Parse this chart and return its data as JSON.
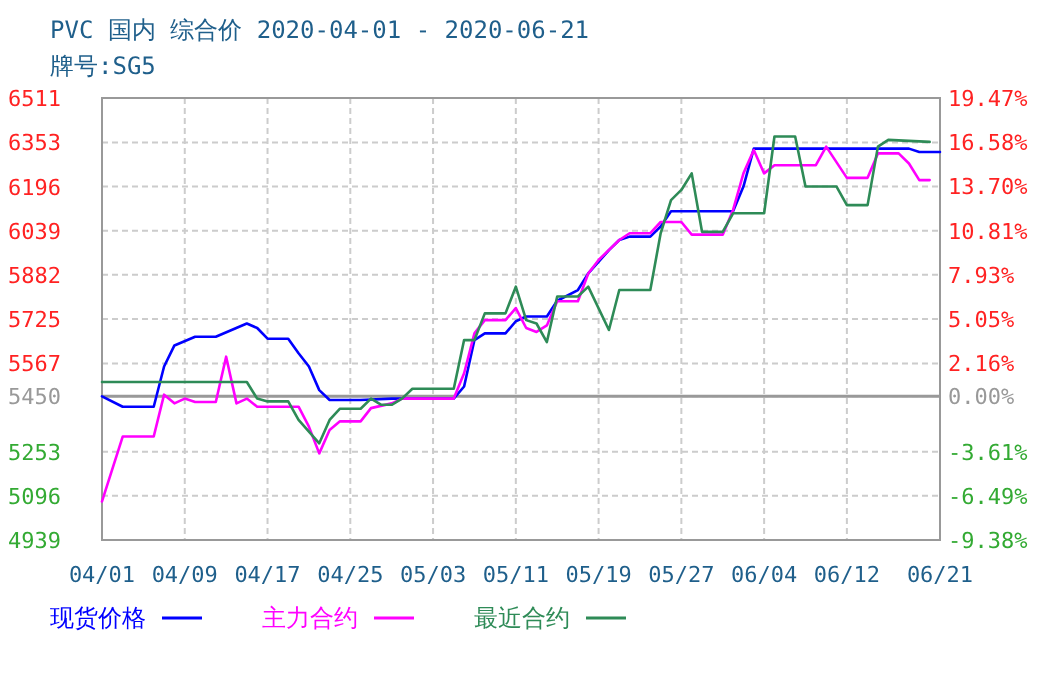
{
  "chart_data": {
    "type": "line",
    "title": "PVC 国内 综合价 2020-04-01 - 2020-06-21",
    "subtitle": "牌号:SG5",
    "xlim": [
      "2020-04-01",
      "2020-06-21"
    ],
    "xticks": [
      {
        "value": "2020-04-01",
        "label": "04/01"
      },
      {
        "value": "2020-04-09",
        "label": "04/09"
      },
      {
        "value": "2020-04-17",
        "label": "04/17"
      },
      {
        "value": "2020-04-25",
        "label": "04/25"
      },
      {
        "value": "2020-05-03",
        "label": "05/03"
      },
      {
        "value": "2020-05-11",
        "label": "05/11"
      },
      {
        "value": "2020-05-19",
        "label": "05/19"
      },
      {
        "value": "2020-05-27",
        "label": "05/27"
      },
      {
        "value": "2020-06-04",
        "label": "06/04"
      },
      {
        "value": "2020-06-12",
        "label": "06/12"
      },
      {
        "value": "2020-06-21",
        "label": "06/21"
      }
    ],
    "ylim": [
      4939,
      6511
    ],
    "yticks": [
      4939,
      5096,
      5253,
      5450,
      5567,
      5725,
      5882,
      6039,
      6196,
      6353,
      6511
    ],
    "y2lim": [
      -9.38,
      19.47
    ],
    "y2ticks": [
      {
        "value": -9.38,
        "label": "-9.38%"
      },
      {
        "value": -6.49,
        "label": "-6.49%"
      },
      {
        "value": -3.61,
        "label": "-3.61%"
      },
      {
        "value": 0,
        "label": "0.00%"
      },
      {
        "value": 2.16,
        "label": "2.16%"
      },
      {
        "value": 5.05,
        "label": "5.05%"
      },
      {
        "value": 7.93,
        "label": "7.93%"
      },
      {
        "value": 10.81,
        "label": "10.81%"
      },
      {
        "value": 13.7,
        "label": "13.70%"
      },
      {
        "value": 16.58,
        "label": "16.58%"
      },
      {
        "value": 19.47,
        "label": "19.47%"
      }
    ],
    "ref_lines": [
      {
        "axis": "y",
        "value": 5450,
        "color": "#999999",
        "line_style": "solid"
      }
    ],
    "grid": true,
    "legend": "bottom",
    "line_style": "solid",
    "series": [
      {
        "name": "现货价格",
        "color": "#0000ff",
        "x": [
          "2020-04-01",
          "2020-04-03",
          "2020-04-06",
          "2020-04-07",
          "2020-04-08",
          "2020-04-10",
          "2020-04-12",
          "2020-04-15",
          "2020-04-16",
          "2020-04-17",
          "2020-04-19",
          "2020-04-20",
          "2020-04-21",
          "2020-04-22",
          "2020-04-23",
          "2020-04-26",
          "2020-04-29",
          "2020-05-05",
          "2020-05-06",
          "2020-05-07",
          "2020-05-08",
          "2020-05-10",
          "2020-05-11",
          "2020-05-12",
          "2020-05-14",
          "2020-05-15",
          "2020-05-17",
          "2020-05-18",
          "2020-05-20",
          "2020-05-21",
          "2020-05-22",
          "2020-05-24",
          "2020-05-25",
          "2020-05-26",
          "2020-06-01",
          "2020-06-02",
          "2020-06-03",
          "2020-06-18",
          "2020-06-19",
          "2020-06-21"
        ],
        "values": [
          5450,
          5413,
          5413,
          5556,
          5631,
          5662,
          5662,
          5709,
          5693,
          5655,
          5655,
          5603,
          5556,
          5472,
          5437,
          5437,
          5442,
          5442,
          5485,
          5650,
          5674,
          5674,
          5717,
          5734,
          5734,
          5790,
          5828,
          5887,
          5970,
          6006,
          6018,
          6018,
          6054,
          6108,
          6108,
          6196,
          6331,
          6331,
          6319,
          6319
        ]
      },
      {
        "name": "主力合约",
        "color": "#ff00ff",
        "x": [
          "2020-04-01",
          "2020-04-03",
          "2020-04-06",
          "2020-04-07",
          "2020-04-08",
          "2020-04-09",
          "2020-04-10",
          "2020-04-12",
          "2020-04-13",
          "2020-04-14",
          "2020-04-15",
          "2020-04-16",
          "2020-04-20",
          "2020-04-21",
          "2020-04-22",
          "2020-04-23",
          "2020-04-24",
          "2020-04-26",
          "2020-04-27",
          "2020-04-29",
          "2020-04-30",
          "2020-05-05",
          "2020-05-06",
          "2020-05-07",
          "2020-05-08",
          "2020-05-10",
          "2020-05-11",
          "2020-05-12",
          "2020-05-13",
          "2020-05-14",
          "2020-05-15",
          "2020-05-17",
          "2020-05-18",
          "2020-05-19",
          "2020-05-21",
          "2020-05-22",
          "2020-05-24",
          "2020-05-25",
          "2020-05-27",
          "2020-05-28",
          "2020-05-31",
          "2020-06-01",
          "2020-06-02",
          "2020-06-03",
          "2020-06-04",
          "2020-06-05",
          "2020-06-09",
          "2020-06-10",
          "2020-06-12",
          "2020-06-14",
          "2020-06-15",
          "2020-06-17",
          "2020-06-18",
          "2020-06-19",
          "2020-06-20"
        ],
        "values": [
          5076,
          5307,
          5307,
          5456,
          5425,
          5442,
          5430,
          5430,
          5591,
          5425,
          5442,
          5413,
          5413,
          5342,
          5247,
          5330,
          5361,
          5361,
          5408,
          5425,
          5442,
          5442,
          5532,
          5674,
          5721,
          5721,
          5764,
          5693,
          5679,
          5702,
          5788,
          5788,
          5887,
          5935,
          6006,
          6030,
          6030,
          6070,
          6070,
          6025,
          6025,
          6113,
          6243,
          6326,
          6243,
          6272,
          6272,
          6338,
          6227,
          6227,
          6314,
          6314,
          6278,
          6219,
          6219
        ]
      },
      {
        "name": "最近合约",
        "color": "#2e8b57",
        "x": [
          "2020-04-01",
          "2020-04-15",
          "2020-04-16",
          "2020-04-17",
          "2020-04-19",
          "2020-04-20",
          "2020-04-22",
          "2020-04-23",
          "2020-04-24",
          "2020-04-26",
          "2020-04-27",
          "2020-04-28",
          "2020-04-29",
          "2020-04-30",
          "2020-05-01",
          "2020-05-05",
          "2020-05-06",
          "2020-05-07",
          "2020-05-08",
          "2020-05-10",
          "2020-05-11",
          "2020-05-12",
          "2020-05-13",
          "2020-05-14",
          "2020-05-15",
          "2020-05-17",
          "2020-05-18",
          "2020-05-20",
          "2020-05-21",
          "2020-05-24",
          "2020-05-25",
          "2020-05-26",
          "2020-05-27",
          "2020-05-28",
          "2020-05-29",
          "2020-05-31",
          "2020-06-01",
          "2020-06-04",
          "2020-06-05",
          "2020-06-07",
          "2020-06-08",
          "2020-06-11",
          "2020-06-12",
          "2020-06-14",
          "2020-06-15",
          "2020-06-16",
          "2020-06-20"
        ],
        "values": [
          5501,
          5501,
          5442,
          5432,
          5432,
          5366,
          5283,
          5366,
          5406,
          5406,
          5442,
          5420,
          5420,
          5442,
          5477,
          5477,
          5650,
          5650,
          5745,
          5745,
          5840,
          5721,
          5709,
          5643,
          5805,
          5805,
          5840,
          5686,
          5828,
          5828,
          6030,
          6148,
          6184,
          6243,
          6035,
          6035,
          6101,
          6101,
          6374,
          6374,
          6196,
          6196,
          6130,
          6130,
          6338,
          6362,
          6355
        ]
      }
    ]
  }
}
